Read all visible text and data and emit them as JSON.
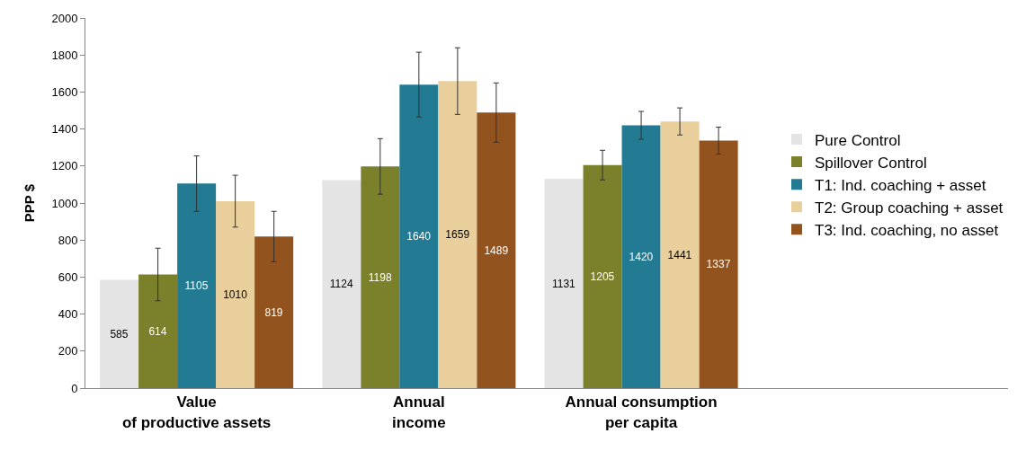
{
  "chart_data": {
    "type": "bar",
    "ylabel": "PPP $",
    "categories": [
      "Value\nof productive assets",
      "Annual\nincome",
      "Annual consumption\nper capita"
    ],
    "series": [
      {
        "name": "Pure Control",
        "color": "#e4e4e4",
        "values": [
          585,
          1124,
          1131
        ],
        "errors": [
          null,
          null,
          null
        ]
      },
      {
        "name": "Spillover Control",
        "color": "#7a812a",
        "values": [
          614,
          1198,
          1205
        ],
        "errors": [
          142,
          150,
          80
        ]
      },
      {
        "name": "T1: Ind. coaching + asset",
        "color": "#227a93",
        "values": [
          1105,
          1640,
          1420
        ],
        "errors": [
          150,
          175,
          75
        ]
      },
      {
        "name": "T2: Group coaching + asset",
        "color": "#e8cf9c",
        "values": [
          1010,
          1659,
          1441
        ],
        "errors": [
          140,
          180,
          73
        ]
      },
      {
        "name": "T3: Ind. coaching, no asset",
        "color": "#93531f",
        "values": [
          819,
          1489,
          1337
        ],
        "errors": [
          136,
          160,
          73
        ]
      }
    ],
    "ylim": [
      0,
      2000
    ],
    "yticks": [
      0,
      200,
      400,
      600,
      800,
      1000,
      1200,
      1400,
      1600,
      1800,
      2000
    ],
    "data_labels": true,
    "legend": "right"
  }
}
